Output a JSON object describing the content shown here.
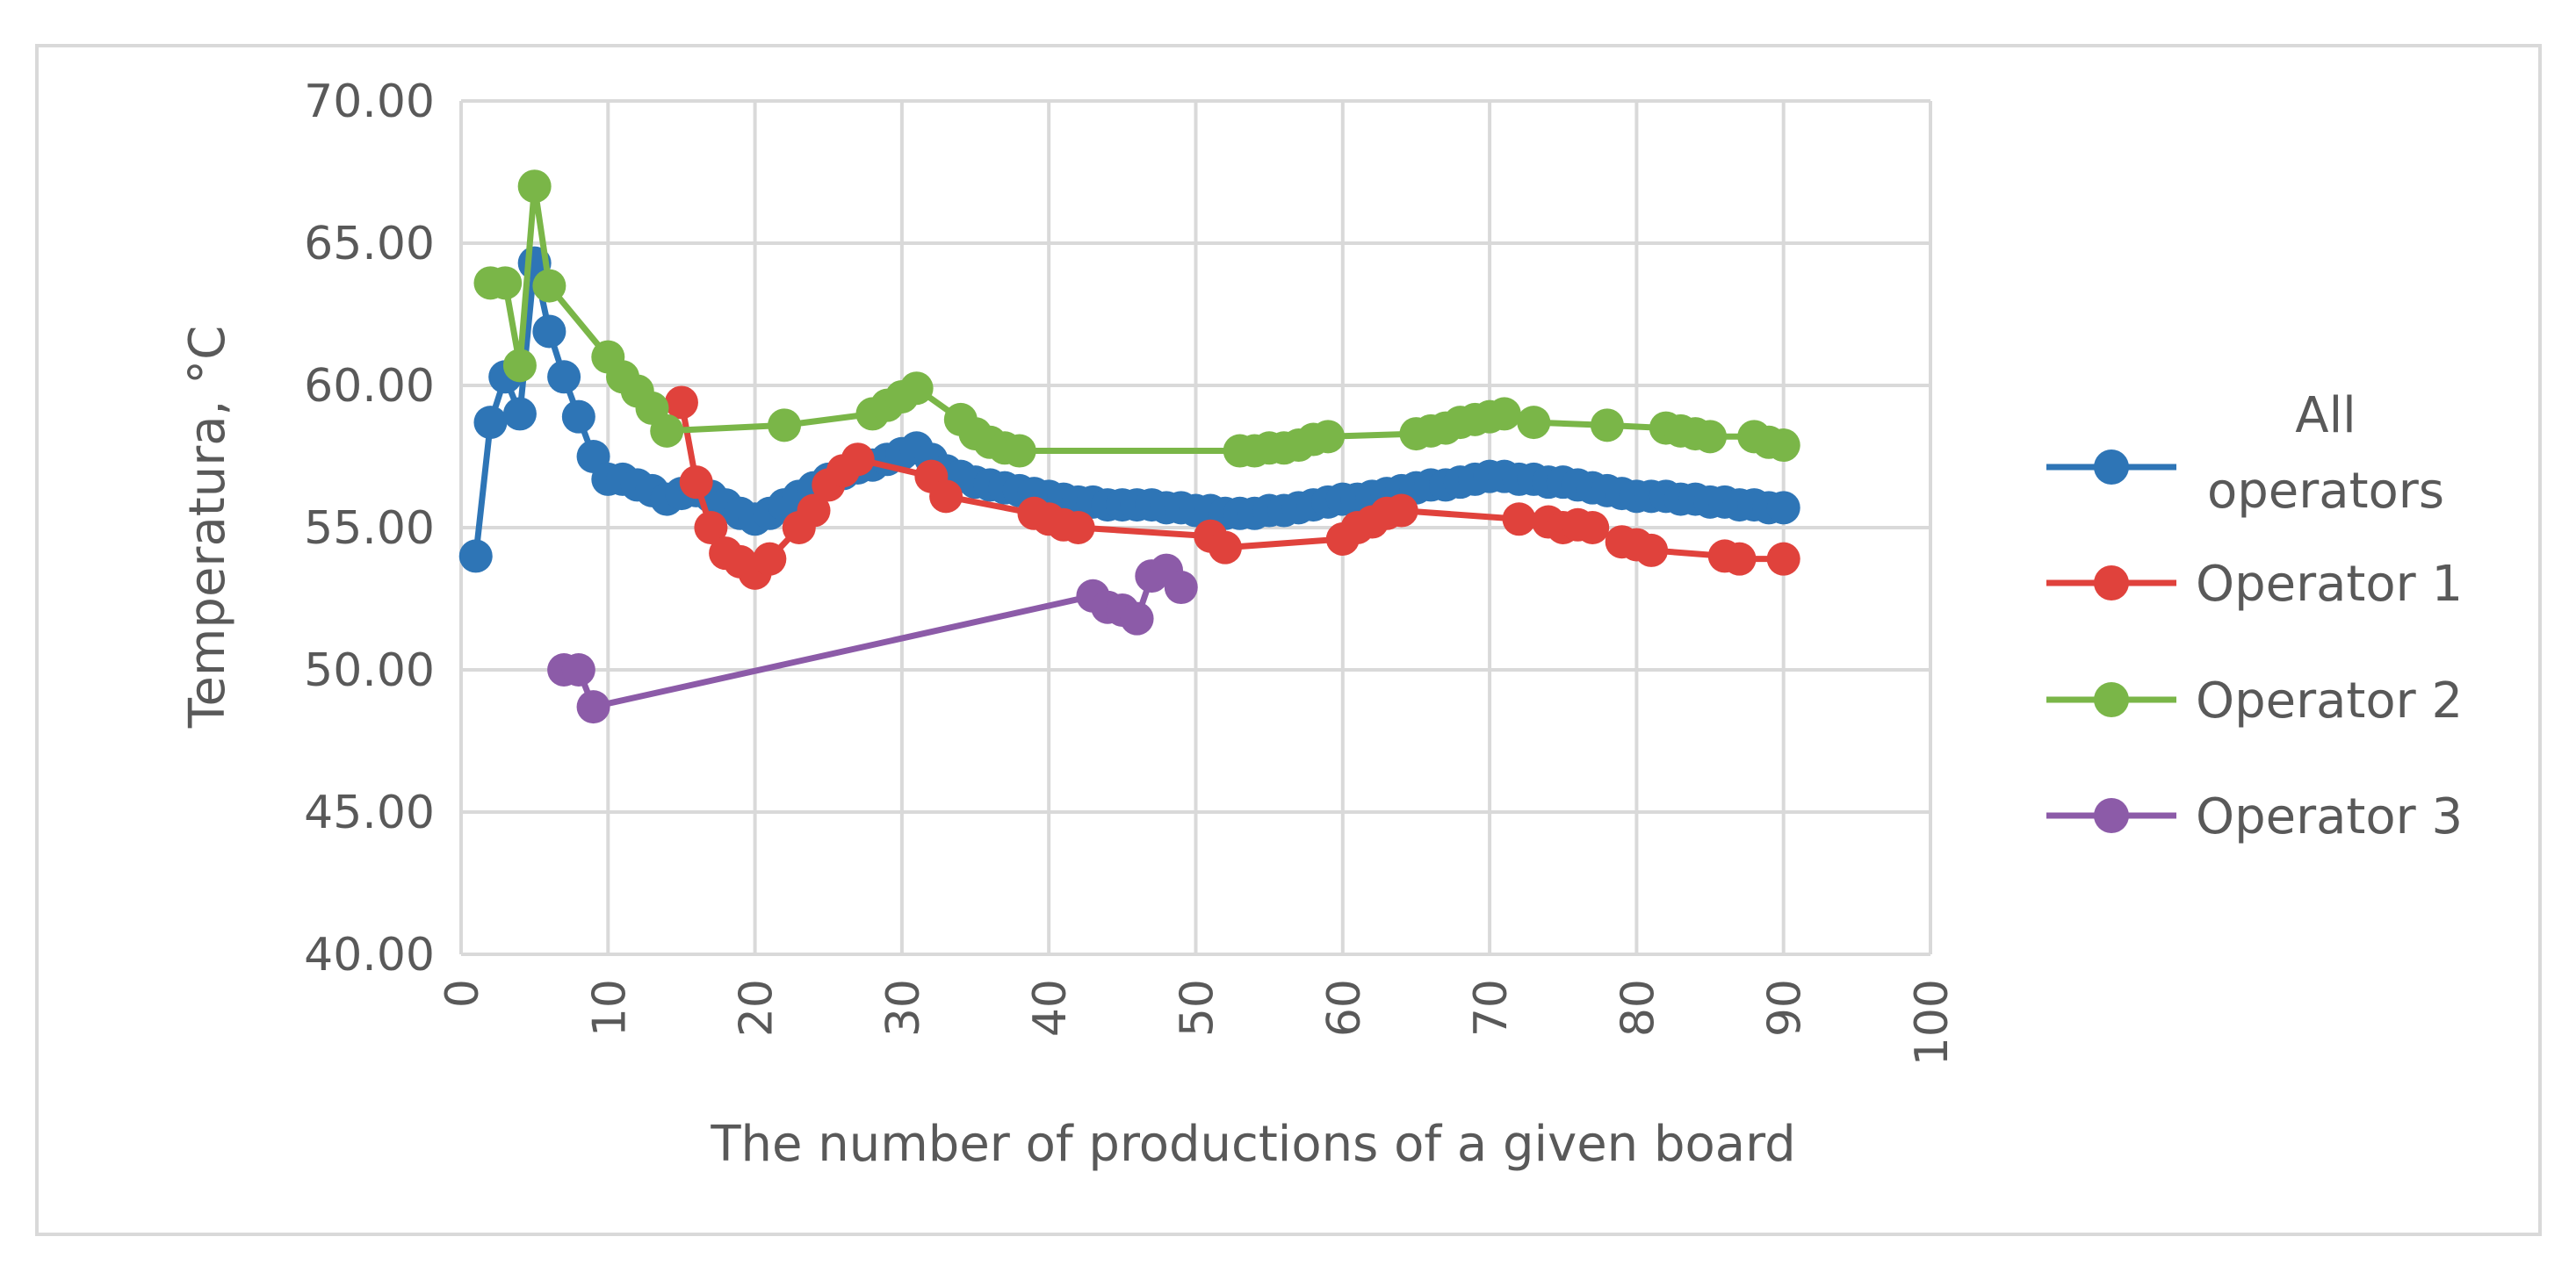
{
  "chart_data": {
    "type": "line",
    "title": "",
    "xlabel": "The number of productions of a given board",
    "ylabel": "Temperatura, °C",
    "xlim": [
      0,
      100
    ],
    "ylim": [
      40,
      70
    ],
    "x_ticks": [
      0,
      10,
      20,
      30,
      40,
      50,
      60,
      70,
      80,
      90,
      100
    ],
    "y_ticks": [
      "40.00",
      "45.00",
      "50.00",
      "55.00",
      "60.00",
      "65.00",
      "70.00"
    ],
    "grid": true,
    "legend_position": "right",
    "series": [
      {
        "name": "All operators",
        "legend_lines": [
          "All",
          "operators"
        ],
        "color": "#2E75B6",
        "points": [
          [
            1,
            54.0
          ],
          [
            2,
            58.7
          ],
          [
            3,
            60.3
          ],
          [
            4,
            59.0
          ],
          [
            5,
            64.3
          ],
          [
            6,
            61.9
          ],
          [
            7,
            60.3
          ],
          [
            8,
            58.9
          ],
          [
            9,
            57.5
          ],
          [
            10,
            56.7
          ],
          [
            11,
            56.7
          ],
          [
            12,
            56.5
          ],
          [
            13,
            56.3
          ],
          [
            14,
            56.0
          ],
          [
            15,
            56.2
          ],
          [
            16,
            56.3
          ],
          [
            17,
            56.1
          ],
          [
            18,
            55.8
          ],
          [
            19,
            55.5
          ],
          [
            20,
            55.3
          ],
          [
            21,
            55.5
          ],
          [
            22,
            55.8
          ],
          [
            23,
            56.1
          ],
          [
            24,
            56.4
          ],
          [
            25,
            56.7
          ],
          [
            26,
            56.9
          ],
          [
            27,
            57.1
          ],
          [
            28,
            57.2
          ],
          [
            29,
            57.4
          ],
          [
            30,
            57.6
          ],
          [
            31,
            57.8
          ],
          [
            32,
            57.4
          ],
          [
            33,
            57.0
          ],
          [
            34,
            56.8
          ],
          [
            35,
            56.6
          ],
          [
            36,
            56.5
          ],
          [
            37,
            56.4
          ],
          [
            38,
            56.3
          ],
          [
            39,
            56.2
          ],
          [
            40,
            56.1
          ],
          [
            41,
            56.0
          ],
          [
            42,
            55.9
          ],
          [
            43,
            55.9
          ],
          [
            44,
            55.8
          ],
          [
            45,
            55.8
          ],
          [
            46,
            55.8
          ],
          [
            47,
            55.8
          ],
          [
            48,
            55.7
          ],
          [
            49,
            55.7
          ],
          [
            50,
            55.6
          ],
          [
            51,
            55.6
          ],
          [
            52,
            55.5
          ],
          [
            53,
            55.5
          ],
          [
            54,
            55.5
          ],
          [
            55,
            55.6
          ],
          [
            56,
            55.6
          ],
          [
            57,
            55.7
          ],
          [
            58,
            55.8
          ],
          [
            59,
            55.9
          ],
          [
            60,
            56.0
          ],
          [
            61,
            56.0
          ],
          [
            62,
            56.1
          ],
          [
            63,
            56.2
          ],
          [
            64,
            56.3
          ],
          [
            65,
            56.4
          ],
          [
            66,
            56.5
          ],
          [
            67,
            56.5
          ],
          [
            68,
            56.6
          ],
          [
            69,
            56.7
          ],
          [
            70,
            56.8
          ],
          [
            71,
            56.8
          ],
          [
            72,
            56.7
          ],
          [
            73,
            56.7
          ],
          [
            74,
            56.6
          ],
          [
            75,
            56.6
          ],
          [
            76,
            56.5
          ],
          [
            77,
            56.4
          ],
          [
            78,
            56.3
          ],
          [
            79,
            56.2
          ],
          [
            80,
            56.1
          ],
          [
            81,
            56.1
          ],
          [
            82,
            56.1
          ],
          [
            83,
            56.0
          ],
          [
            84,
            56.0
          ],
          [
            85,
            55.9
          ],
          [
            86,
            55.9
          ],
          [
            87,
            55.8
          ],
          [
            88,
            55.8
          ],
          [
            89,
            55.7
          ],
          [
            90,
            55.7
          ]
        ]
      },
      {
        "name": "Operator 1",
        "legend_lines": [
          "Operator 1"
        ],
        "color": "#E0423C",
        "points": [
          [
            15,
            59.4
          ],
          [
            16,
            56.6
          ],
          [
            17,
            55.0
          ],
          [
            18,
            54.1
          ],
          [
            19,
            53.8
          ],
          [
            20,
            53.4
          ],
          [
            21,
            53.9
          ],
          [
            23,
            55.0
          ],
          [
            24,
            55.6
          ],
          [
            25,
            56.5
          ],
          [
            26,
            57.0
          ],
          [
            27,
            57.4
          ],
          [
            32,
            56.8
          ],
          [
            33,
            56.1
          ],
          [
            39,
            55.5
          ],
          [
            40,
            55.3
          ],
          [
            41,
            55.1
          ],
          [
            42,
            55.0
          ],
          [
            51,
            54.7
          ],
          [
            52,
            54.3
          ],
          [
            60,
            54.6
          ],
          [
            61,
            55.0
          ],
          [
            62,
            55.2
          ],
          [
            63,
            55.5
          ],
          [
            64,
            55.6
          ],
          [
            72,
            55.3
          ],
          [
            74,
            55.2
          ],
          [
            75,
            55.0
          ],
          [
            76,
            55.1
          ],
          [
            77,
            55.0
          ],
          [
            79,
            54.5
          ],
          [
            80,
            54.4
          ],
          [
            81,
            54.2
          ],
          [
            86,
            54.0
          ],
          [
            87,
            53.9
          ],
          [
            90,
            53.9
          ]
        ]
      },
      {
        "name": "Operator 2",
        "legend_lines": [
          "Operator 2"
        ],
        "color": "#7AB648",
        "points": [
          [
            2,
            63.6
          ],
          [
            3,
            63.6
          ],
          [
            4,
            60.7
          ],
          [
            5,
            67.0
          ],
          [
            6,
            63.5
          ],
          [
            10,
            61.0
          ],
          [
            11,
            60.3
          ],
          [
            12,
            59.8
          ],
          [
            13,
            59.2
          ],
          [
            14,
            58.4
          ],
          [
            22,
            58.6
          ],
          [
            28,
            59.0
          ],
          [
            29,
            59.3
          ],
          [
            30,
            59.6
          ],
          [
            31,
            59.9
          ],
          [
            34,
            58.8
          ],
          [
            35,
            58.3
          ],
          [
            36,
            58.0
          ],
          [
            37,
            57.8
          ],
          [
            38,
            57.7
          ],
          [
            53,
            57.7
          ],
          [
            54,
            57.7
          ],
          [
            55,
            57.8
          ],
          [
            56,
            57.8
          ],
          [
            57,
            57.9
          ],
          [
            58,
            58.1
          ],
          [
            59,
            58.2
          ],
          [
            65,
            58.3
          ],
          [
            66,
            58.4
          ],
          [
            67,
            58.5
          ],
          [
            68,
            58.7
          ],
          [
            69,
            58.8
          ],
          [
            70,
            58.9
          ],
          [
            71,
            59.0
          ],
          [
            73,
            58.7
          ],
          [
            78,
            58.6
          ],
          [
            82,
            58.5
          ],
          [
            83,
            58.4
          ],
          [
            84,
            58.3
          ],
          [
            85,
            58.2
          ],
          [
            88,
            58.2
          ],
          [
            89,
            58.0
          ],
          [
            90,
            57.9
          ]
        ]
      },
      {
        "name": "Operator 3",
        "legend_lines": [
          "Operator 3"
        ],
        "color": "#8C5BA8",
        "points": [
          [
            7,
            50.0
          ],
          [
            8,
            50.0
          ],
          [
            9,
            48.7
          ],
          [
            43,
            52.6
          ],
          [
            44,
            52.2
          ],
          [
            45,
            52.1
          ],
          [
            46,
            51.8
          ],
          [
            47,
            53.3
          ],
          [
            48,
            53.5
          ],
          [
            49,
            52.9
          ]
        ]
      }
    ]
  }
}
